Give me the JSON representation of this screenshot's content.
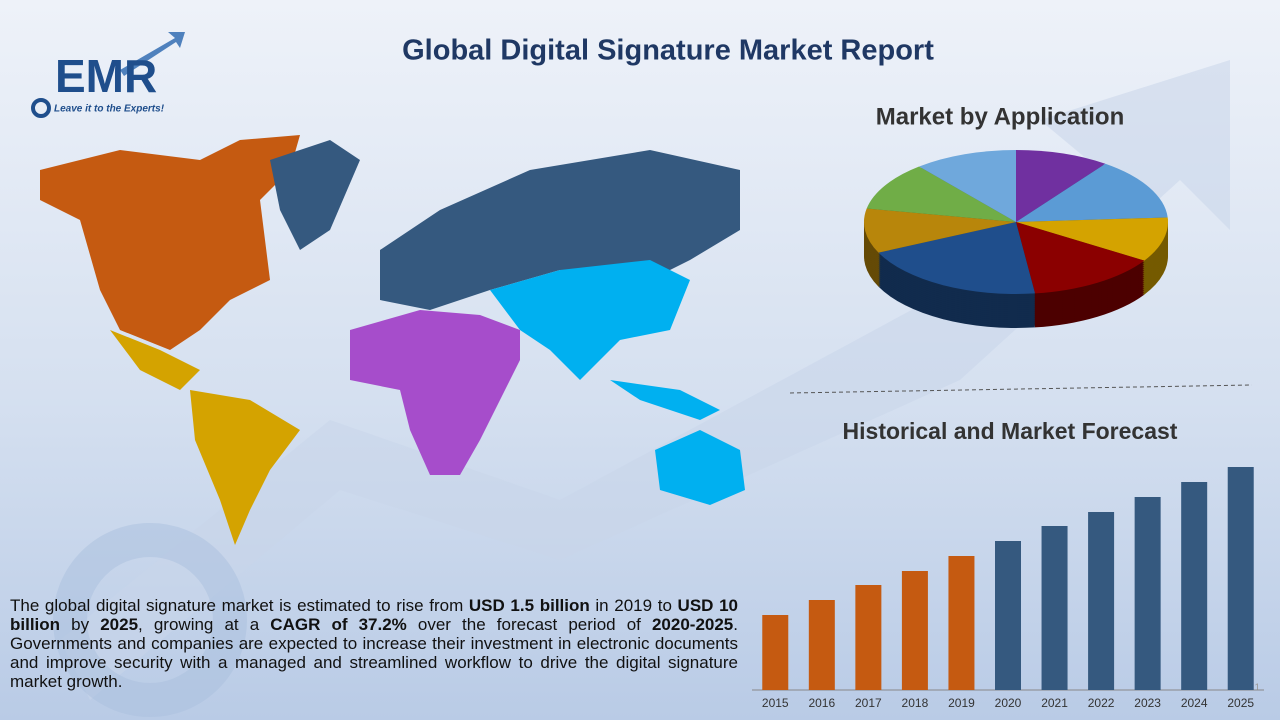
{
  "header": {
    "title": "Global Digital Signature Market Report"
  },
  "logo": {
    "name": "EMR",
    "tagline": "Leave it to the Experts!"
  },
  "description": {
    "segments": [
      {
        "text": "The global digital signature market is estimated to rise from ",
        "bold": false
      },
      {
        "text": "USD 1.5 billion",
        "bold": true
      },
      {
        "text": " in 2019 to ",
        "bold": false
      },
      {
        "text": "USD 10 billion",
        "bold": true
      },
      {
        "text": " by ",
        "bold": false
      },
      {
        "text": "2025",
        "bold": true
      },
      {
        "text": ", growing at a ",
        "bold": false
      },
      {
        "text": "CAGR of 37.2%",
        "bold": true
      },
      {
        "text": " over the forecast period of ",
        "bold": false
      },
      {
        "text": "2020-2025",
        "bold": true
      },
      {
        "text": ". Governments and companies are expected to increase their investment in electronic documents and improve security with a managed and streamlined workflow to drive the digital signature market growth.",
        "bold": false
      }
    ]
  },
  "page_number": "1",
  "chart_data": [
    {
      "type": "pie",
      "title": "Market by Application",
      "values": [
        10,
        14,
        10,
        14,
        20,
        10,
        11,
        11
      ],
      "colors": [
        "#7030a0",
        "#5b9bd5",
        "#d4a300",
        "#8b0000",
        "#1f4e8c",
        "#b8860b",
        "#70ad47",
        "#6fa8dc"
      ]
    },
    {
      "type": "bar",
      "title": "Historical and Market Forecast",
      "categories": [
        "2015",
        "2016",
        "2017",
        "2018",
        "2019",
        "2020",
        "2021",
        "2022",
        "2023",
        "2024",
        "2025"
      ],
      "values": [
        75,
        90,
        105,
        119,
        134,
        149,
        164,
        178,
        193,
        208,
        223
      ],
      "colors": [
        "#c55a11",
        "#c55a11",
        "#c55a11",
        "#c55a11",
        "#c55a11",
        "#35597f",
        "#35597f",
        "#35597f",
        "#35597f",
        "#35597f",
        "#35597f"
      ],
      "ylim": [
        0,
        230
      ]
    }
  ]
}
